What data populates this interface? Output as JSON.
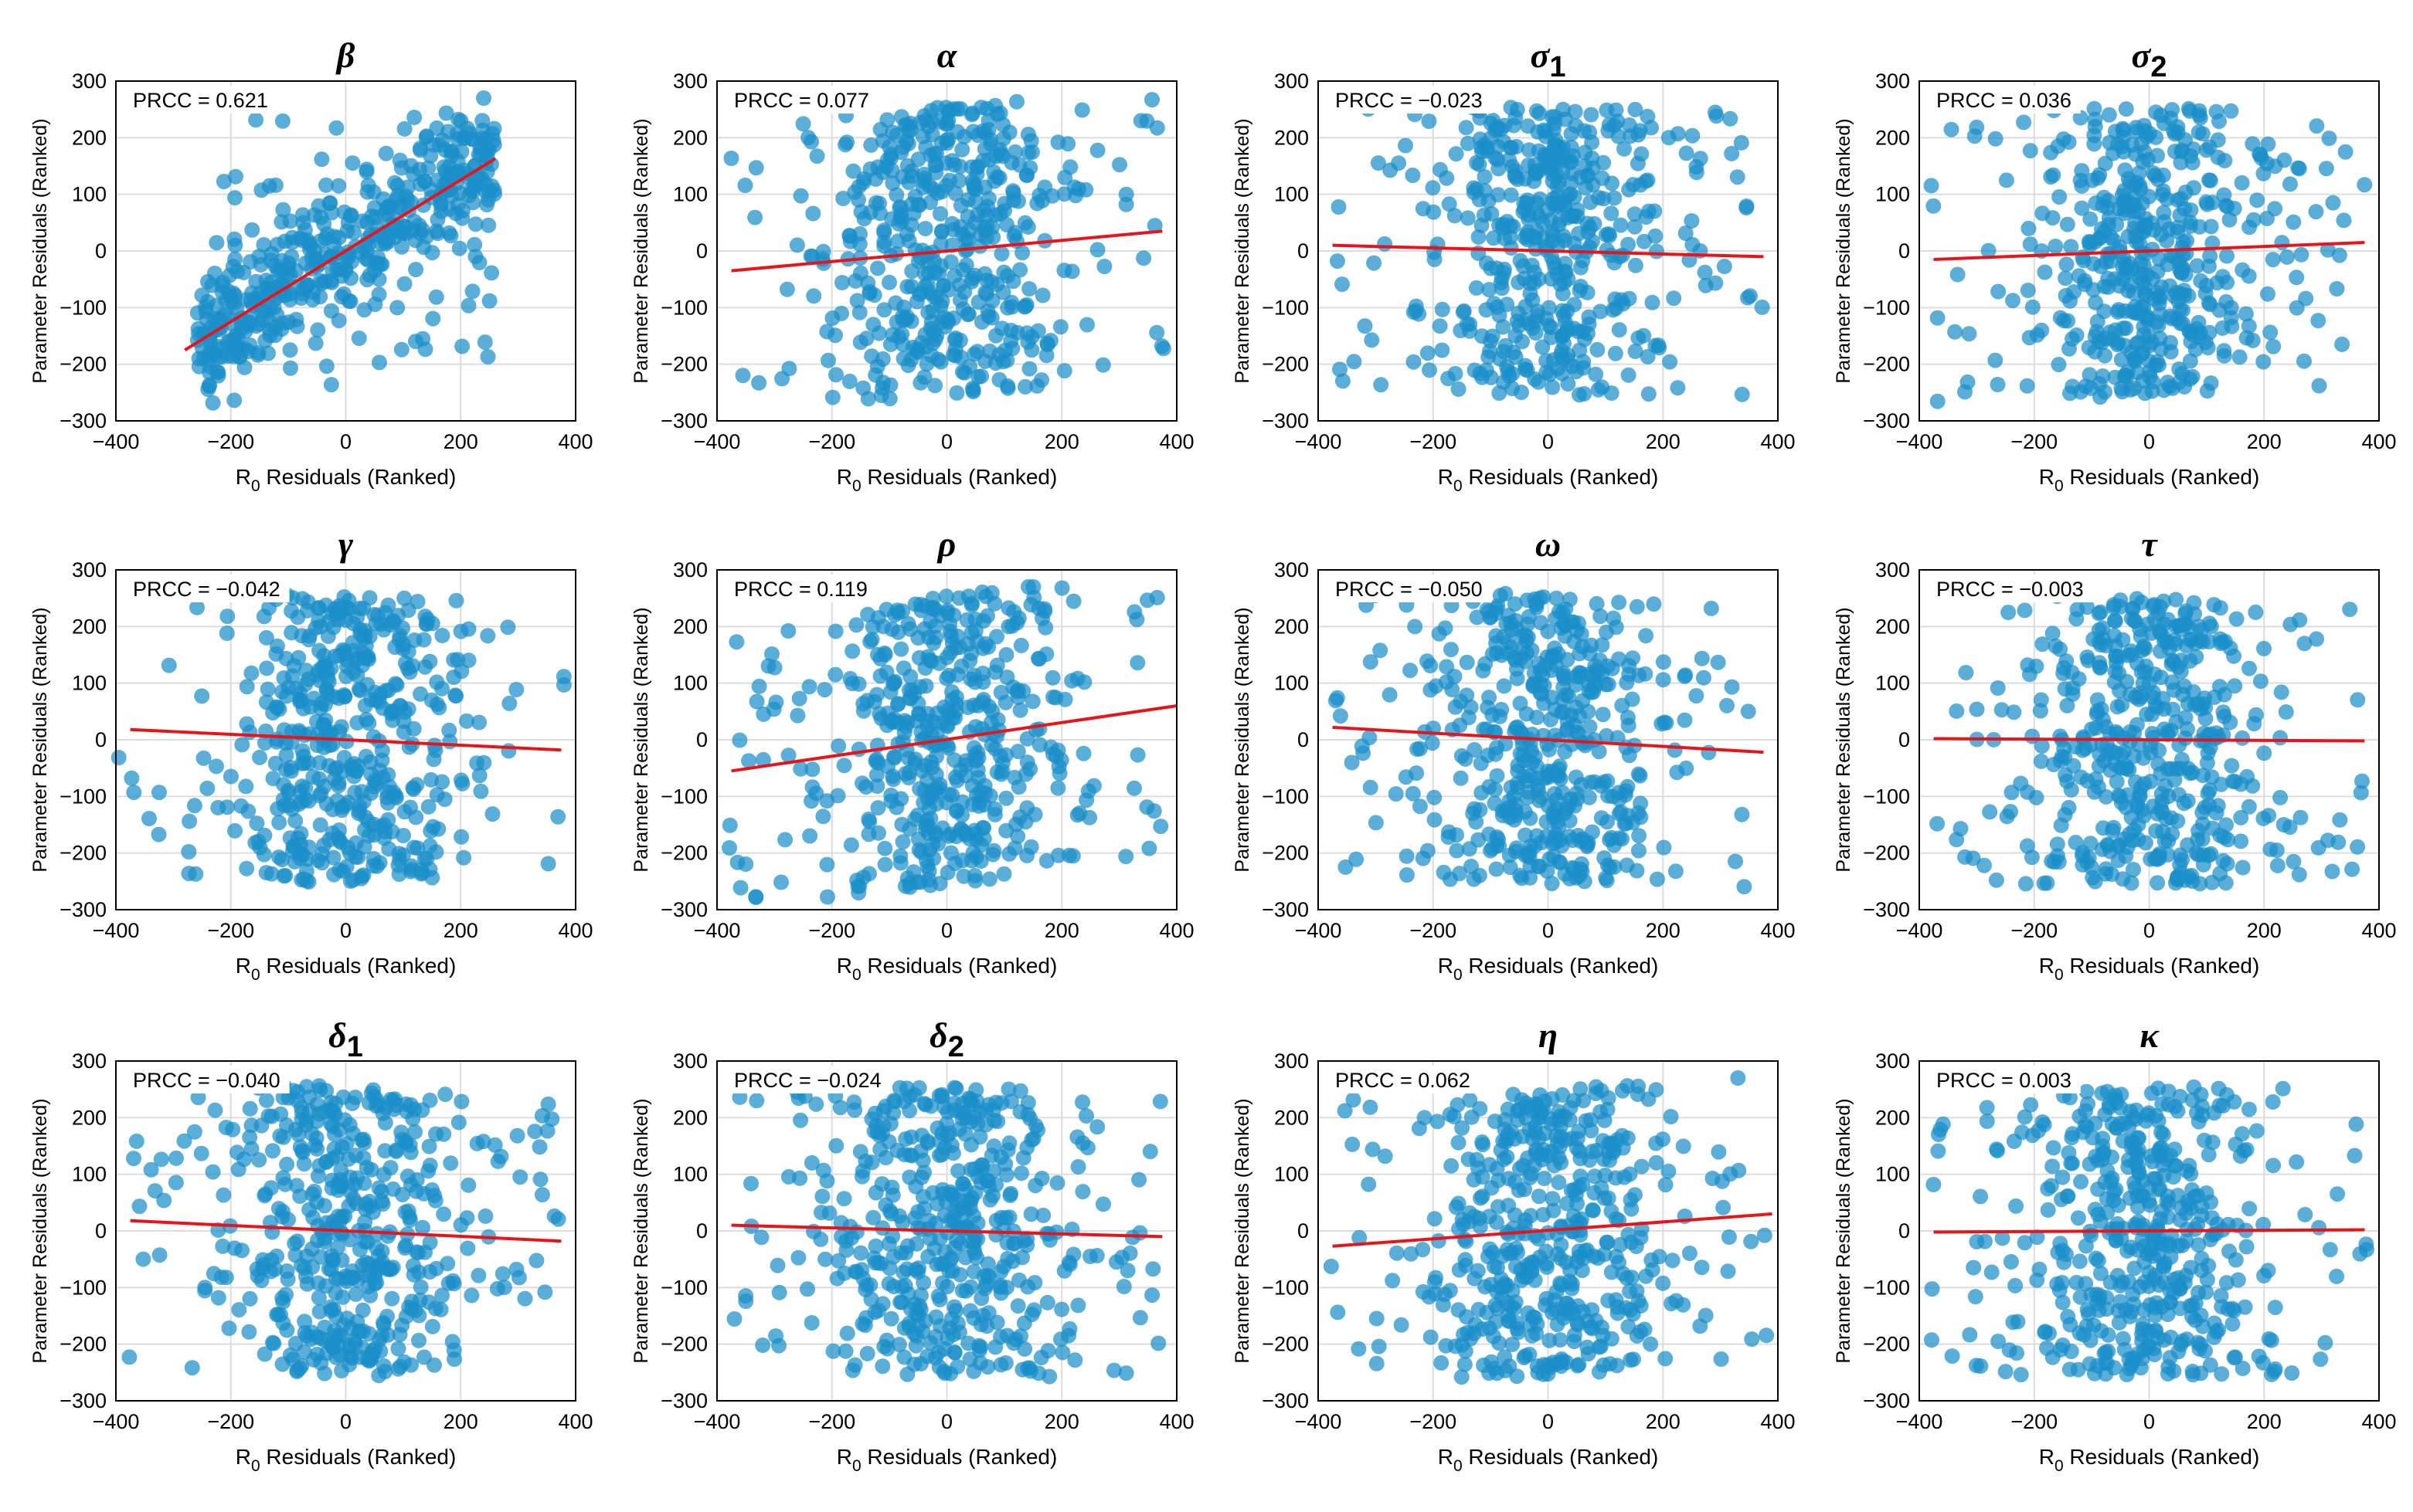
{
  "figure": {
    "description_label": "PRCC scatter panels",
    "colors": {
      "points": "#1a8fc9",
      "fit": "#e8141b",
      "grid": "#dcdcdc",
      "axis": "#000000"
    }
  },
  "chart_data": [
    {
      "type": "scatter",
      "title": "β",
      "subscript": "",
      "prcc": "PRCC = 0.621",
      "slope": 0.621,
      "xlabel": "R0 Residuals (Ranked)",
      "xlabel_main": "R",
      "xlabel_sub": "0",
      "xlabel_rest": " Residuals (Ranked)",
      "ylabel": "Parameter Residuals (Ranked)",
      "xlim": [
        -400,
        400
      ],
      "ylim": [
        -300,
        300
      ],
      "xticks": [
        -400,
        -200,
        0,
        200,
        400
      ],
      "yticks": [
        -300,
        -200,
        -100,
        0,
        100,
        200,
        300
      ],
      "fit_x": [
        -280,
        260
      ],
      "fit_y": [
        -175,
        163
      ],
      "points_note": "~500 ranked residual pairs, strongly positively correlated"
    },
    {
      "type": "scatter",
      "title": "α",
      "subscript": "",
      "prcc": "PRCC = 0.077",
      "slope": 0.077,
      "xlabel": "R0 Residuals (Ranked)",
      "xlabel_main": "R",
      "xlabel_sub": "0",
      "xlabel_rest": " Residuals (Ranked)",
      "ylabel": "Parameter Residuals (Ranked)",
      "xlim": [
        -400,
        400
      ],
      "ylim": [
        -300,
        300
      ],
      "xticks": [
        -400,
        -200,
        0,
        200,
        400
      ],
      "yticks": [
        -300,
        -200,
        -100,
        0,
        100,
        200,
        300
      ],
      "fit_x": [
        -375,
        375
      ],
      "fit_y": [
        -35,
        35
      ]
    },
    {
      "type": "scatter",
      "title": "σ",
      "subscript": "1",
      "prcc": "PRCC = −0.023",
      "slope": -0.023,
      "xlabel": "R0 Residuals (Ranked)",
      "xlabel_main": "R",
      "xlabel_sub": "0",
      "xlabel_rest": " Residuals (Ranked)",
      "ylabel": "Parameter Residuals (Ranked)",
      "xlim": [
        -400,
        400
      ],
      "ylim": [
        -300,
        300
      ],
      "xticks": [
        -400,
        -200,
        0,
        200,
        400
      ],
      "yticks": [
        -300,
        -200,
        -100,
        0,
        100,
        200,
        300
      ],
      "fit_x": [
        -375,
        375
      ],
      "fit_y": [
        10,
        -10
      ]
    },
    {
      "type": "scatter",
      "title": "σ",
      "subscript": "2",
      "prcc": "PRCC = 0.036",
      "slope": 0.036,
      "xlabel": "R0 Residuals (Ranked)",
      "xlabel_main": "R",
      "xlabel_sub": "0",
      "xlabel_rest": " Residuals (Ranked)",
      "ylabel": "Parameter Residuals (Ranked)",
      "xlim": [
        -400,
        400
      ],
      "ylim": [
        -300,
        300
      ],
      "xticks": [
        -400,
        -200,
        0,
        200,
        400
      ],
      "yticks": [
        -300,
        -200,
        -100,
        0,
        100,
        200,
        300
      ],
      "fit_x": [
        -375,
        375
      ],
      "fit_y": [
        -15,
        15
      ]
    },
    {
      "type": "scatter",
      "title": "γ",
      "subscript": "",
      "prcc": "PRCC = −0.042",
      "slope": -0.042,
      "xlabel": "R0 Residuals (Ranked)",
      "xlabel_main": "R",
      "xlabel_sub": "0",
      "xlabel_rest": " Residuals (Ranked)",
      "ylabel": "Parameter Residuals (Ranked)",
      "xlim": [
        -400,
        400
      ],
      "ylim": [
        -300,
        300
      ],
      "xticks": [
        -400,
        -200,
        0,
        200,
        400
      ],
      "yticks": [
        -300,
        -200,
        -100,
        0,
        100,
        200,
        300
      ],
      "fit_x": [
        -375,
        375
      ],
      "fit_y": [
        18,
        -18
      ]
    },
    {
      "type": "scatter",
      "title": "ρ",
      "subscript": "",
      "prcc": "PRCC = 0.119",
      "slope": 0.119,
      "xlabel": "R0 Residuals (Ranked)",
      "xlabel_main": "R",
      "xlabel_sub": "0",
      "xlabel_rest": " Residuals (Ranked)",
      "ylabel": "Parameter Residuals (Ranked)",
      "xlim": [
        -400,
        400
      ],
      "ylim": [
        -300,
        300
      ],
      "xticks": [
        -400,
        -200,
        0,
        200,
        400
      ],
      "yticks": [
        -300,
        -200,
        -100,
        0,
        100,
        200,
        300
      ],
      "fit_x": [
        -375,
        400
      ],
      "fit_y": [
        -55,
        60
      ]
    },
    {
      "type": "scatter",
      "title": "ω",
      "subscript": "",
      "prcc": "PRCC = −0.050",
      "slope": -0.05,
      "xlabel": "R0 Residuals (Ranked)",
      "xlabel_main": "R",
      "xlabel_sub": "0",
      "xlabel_rest": " Residuals (Ranked)",
      "ylabel": "Parameter Residuals (Ranked)",
      "xlim": [
        -400,
        400
      ],
      "ylim": [
        -300,
        300
      ],
      "xticks": [
        -400,
        -200,
        0,
        200,
        400
      ],
      "yticks": [
        -300,
        -200,
        -100,
        0,
        100,
        200,
        300
      ],
      "fit_x": [
        -375,
        375
      ],
      "fit_y": [
        22,
        -22
      ]
    },
    {
      "type": "scatter",
      "title": "τ",
      "subscript": "",
      "prcc": "PRCC = −0.003",
      "slope": -0.003,
      "xlabel": "R0 Residuals (Ranked)",
      "xlabel_main": "R",
      "xlabel_sub": "0",
      "xlabel_rest": " Residuals (Ranked)",
      "ylabel": "Parameter Residuals (Ranked)",
      "xlim": [
        -400,
        400
      ],
      "ylim": [
        -300,
        300
      ],
      "xticks": [
        -400,
        -200,
        0,
        200,
        400
      ],
      "yticks": [
        -300,
        -200,
        -100,
        0,
        100,
        200,
        300
      ],
      "fit_x": [
        -375,
        375
      ],
      "fit_y": [
        2,
        -2
      ]
    },
    {
      "type": "scatter",
      "title": "δ",
      "subscript": "1",
      "prcc": "PRCC = −0.040",
      "slope": -0.04,
      "xlabel": "R0 Residuals (Ranked)",
      "xlabel_main": "R",
      "xlabel_sub": "0",
      "xlabel_rest": " Residuals (Ranked)",
      "ylabel": "Parameter Residuals (Ranked)",
      "xlim": [
        -400,
        400
      ],
      "ylim": [
        -300,
        300
      ],
      "xticks": [
        -400,
        -200,
        0,
        200,
        400
      ],
      "yticks": [
        -300,
        -200,
        -100,
        0,
        100,
        200,
        300
      ],
      "fit_x": [
        -375,
        375
      ],
      "fit_y": [
        18,
        -18
      ]
    },
    {
      "type": "scatter",
      "title": "δ",
      "subscript": "2",
      "prcc": "PRCC = −0.024",
      "slope": -0.024,
      "xlabel": "R0 Residuals (Ranked)",
      "xlabel_main": "R",
      "xlabel_sub": "0",
      "xlabel_rest": " Residuals (Ranked)",
      "ylabel": "Parameter Residuals (Ranked)",
      "xlim": [
        -400,
        400
      ],
      "ylim": [
        -300,
        300
      ],
      "xticks": [
        -400,
        -200,
        0,
        200,
        400
      ],
      "yticks": [
        -300,
        -200,
        -100,
        0,
        100,
        200,
        300
      ],
      "fit_x": [
        -375,
        375
      ],
      "fit_y": [
        10,
        -10
      ]
    },
    {
      "type": "scatter",
      "title": "η",
      "subscript": "",
      "prcc": "PRCC = 0.062",
      "slope": 0.062,
      "xlabel": "R0 Residuals (Ranked)",
      "xlabel_main": "R",
      "xlabel_sub": "0",
      "xlabel_rest": " Residuals (Ranked)",
      "ylabel": "Parameter Residuals (Ranked)",
      "xlim": [
        -400,
        400
      ],
      "ylim": [
        -300,
        300
      ],
      "xticks": [
        -400,
        -200,
        0,
        200,
        400
      ],
      "yticks": [
        -300,
        -200,
        -100,
        0,
        100,
        200,
        300
      ],
      "fit_x": [
        -375,
        390
      ],
      "fit_y": [
        -27,
        30
      ]
    },
    {
      "type": "scatter",
      "title": "κ",
      "subscript": "",
      "prcc": "PRCC = 0.003",
      "slope": 0.003,
      "xlabel": "R0 Residuals (Ranked)",
      "xlabel_main": "R",
      "xlabel_sub": "0",
      "xlabel_rest": " Residuals (Ranked)",
      "ylabel": "Parameter Residuals (Ranked)",
      "xlim": [
        -400,
        400
      ],
      "ylim": [
        -300,
        300
      ],
      "xticks": [
        -400,
        -200,
        0,
        200,
        400
      ],
      "yticks": [
        -300,
        -200,
        -100,
        0,
        100,
        200,
        300
      ],
      "fit_x": [
        -375,
        375
      ],
      "fit_y": [
        -2,
        2
      ]
    }
  ]
}
